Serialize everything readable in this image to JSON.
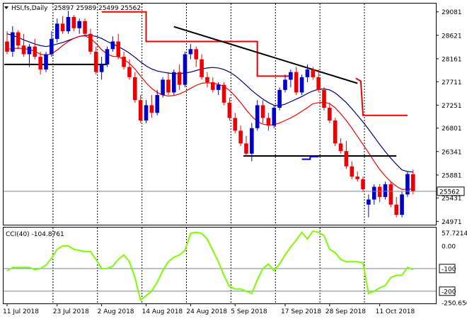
{
  "chart_data": [
    {
      "type": "candlestick",
      "header": {
        "symbol": "HSI,fs,Daily",
        "ohlc_text": "25897 25989 25499 25562"
      },
      "current_price": 25562,
      "current_price_label": "25562",
      "y_ticks": [
        "29081",
        "28621",
        "28161",
        "27711",
        "27251",
        "26801",
        "26341",
        "25881",
        "25431",
        "24971"
      ],
      "y_tick_values": [
        29081,
        28621,
        28161,
        27711,
        27251,
        26801,
        26341,
        25881,
        25431,
        24971
      ],
      "ylim": [
        24920,
        29230
      ],
      "x_labels": [
        "11 Jul 2018",
        "23 Jul 2018",
        "2 Aug 2018",
        "14 Aug 2018",
        "24 Aug 2018",
        "5 Sep 2018",
        "17 Sep 2018",
        "28 Sep 2018",
        "11 Oct 2018"
      ],
      "x_label_bars": [
        0,
        9,
        17,
        25,
        33,
        41,
        50,
        58,
        67
      ],
      "candles": [
        [
          28500,
          28700,
          28250,
          28300
        ],
        [
          28300,
          28800,
          28200,
          28680
        ],
        [
          28680,
          28720,
          28350,
          28420
        ],
        [
          28420,
          28650,
          28200,
          28250
        ],
        [
          28250,
          28450,
          28000,
          28400
        ],
        [
          28400,
          28550,
          28150,
          28200
        ],
        [
          28200,
          28300,
          27850,
          27950
        ],
        [
          27950,
          28300,
          27900,
          28250
        ],
        [
          28250,
          28700,
          28200,
          28550
        ],
        [
          28550,
          28950,
          28480,
          28850
        ],
        [
          28850,
          29000,
          28650,
          28700
        ],
        [
          28700,
          29100,
          28650,
          28980
        ],
        [
          28980,
          29020,
          28700,
          28760
        ],
        [
          28760,
          28950,
          28650,
          28900
        ],
        [
          28900,
          28950,
          28600,
          28650
        ],
        [
          28650,
          28750,
          28250,
          28300
        ],
        [
          28300,
          28400,
          27850,
          27900
        ],
        [
          27900,
          28200,
          27750,
          28050
        ],
        [
          28050,
          28400,
          28000,
          28350
        ],
        [
          28350,
          28600,
          28300,
          28500
        ],
        [
          28500,
          28650,
          28150,
          28200
        ],
        [
          28200,
          28300,
          27950,
          28000
        ],
        [
          28000,
          28150,
          27750,
          27800
        ],
        [
          27800,
          27900,
          27300,
          27350
        ],
        [
          27350,
          27450,
          26900,
          26950
        ],
        [
          26950,
          27350,
          26900,
          27250
        ],
        [
          27250,
          27450,
          27000,
          27100
        ],
        [
          27100,
          27550,
          27050,
          27450
        ],
        [
          27450,
          27800,
          27400,
          27750
        ],
        [
          27750,
          27900,
          27450,
          27500
        ],
        [
          27500,
          27950,
          27450,
          27900
        ],
        [
          27900,
          28050,
          27550,
          27650
        ],
        [
          27650,
          28300,
          27600,
          28250
        ],
        [
          28250,
          28450,
          28150,
          28350
        ],
        [
          28350,
          28400,
          28000,
          28150
        ],
        [
          28150,
          28250,
          27750,
          27800
        ],
        [
          27800,
          27900,
          27600,
          27700
        ],
        [
          27700,
          27800,
          27500,
          27550
        ],
        [
          27550,
          27700,
          27450,
          27650
        ],
        [
          27650,
          27700,
          27250,
          27300
        ],
        [
          27300,
          27400,
          26950,
          27000
        ],
        [
          27000,
          27100,
          26700,
          26750
        ],
        [
          26750,
          26850,
          26450,
          26500
        ],
        [
          26500,
          26650,
          26250,
          26300
        ],
        [
          26300,
          26900,
          26150,
          26800
        ],
        [
          26800,
          27350,
          26750,
          27250
        ],
        [
          27250,
          27350,
          26900,
          27000
        ],
        [
          27000,
          27100,
          26750,
          26850
        ],
        [
          26850,
          27250,
          26800,
          27200
        ],
        [
          27200,
          27600,
          27150,
          27550
        ],
        [
          27550,
          27850,
          27500,
          27750
        ],
        [
          27750,
          27950,
          27600,
          27900
        ],
        [
          27900,
          28000,
          27450,
          27500
        ],
        [
          27500,
          27850,
          27450,
          27800
        ],
        [
          27800,
          28050,
          27700,
          27950
        ],
        [
          27950,
          28000,
          27750,
          27800
        ],
        [
          27800,
          27950,
          27500,
          27550
        ],
        [
          27550,
          27600,
          27150,
          27200
        ],
        [
          27200,
          27300,
          26900,
          26950
        ],
        [
          26950,
          27000,
          26450,
          26500
        ],
        [
          26500,
          26600,
          26300,
          26350
        ],
        [
          26350,
          26550,
          26000,
          26050
        ],
        [
          26050,
          26150,
          25800,
          25850
        ],
        [
          25850,
          25950,
          25750,
          25800
        ],
        [
          25800,
          25850,
          25550,
          25600
        ],
        [
          25300,
          25500,
          25050,
          25400
        ],
        [
          25400,
          25700,
          25300,
          25650
        ],
        [
          25650,
          25700,
          25350,
          25450
        ],
        [
          25450,
          25750,
          25400,
          25700
        ],
        [
          25700,
          25750,
          25250,
          25300
        ],
        [
          25300,
          25450,
          25050,
          25100
        ],
        [
          25100,
          25550,
          25050,
          25500
        ],
        [
          25500,
          25950,
          25450,
          25900
        ],
        [
          25897,
          25989,
          25499,
          25562
        ]
      ],
      "ma_blue": [
        28650,
        28620,
        28580,
        28530,
        28490,
        28450,
        28420,
        28400,
        28420,
        28450,
        28480,
        28520,
        28560,
        28600,
        28620,
        28620,
        28600,
        28560,
        28500,
        28450,
        28400,
        28340,
        28270,
        28190,
        28100,
        28020,
        27960,
        27920,
        27900,
        27880,
        27870,
        27870,
        27880,
        27900,
        27930,
        27960,
        27980,
        27990,
        27980,
        27950,
        27900,
        27830,
        27740,
        27640,
        27540,
        27450,
        27370,
        27300,
        27250,
        27240,
        27270,
        27320,
        27370,
        27420,
        27480,
        27530,
        27560,
        27570,
        27550,
        27490,
        27400,
        27300,
        27180,
        27050,
        26920,
        26780,
        26630,
        26480,
        26340,
        26210,
        26090,
        25980,
        25950,
        25940
      ],
      "ma_red": [
        28350,
        28360,
        28370,
        28360,
        28340,
        28310,
        28250,
        28230,
        28260,
        28330,
        28420,
        28500,
        28560,
        28600,
        28610,
        28560,
        28460,
        28340,
        28250,
        28210,
        28200,
        28150,
        28070,
        27960,
        27820,
        27690,
        27580,
        27500,
        27450,
        27430,
        27440,
        27470,
        27520,
        27580,
        27640,
        27680,
        27690,
        27680,
        27660,
        27620,
        27540,
        27430,
        27300,
        27160,
        27030,
        26930,
        26880,
        26860,
        26870,
        26900,
        26950,
        27000,
        27060,
        27130,
        27200,
        27280,
        27300,
        27310,
        27280,
        27200,
        27080,
        26950,
        26800,
        26640,
        26480,
        26320,
        26150,
        25990,
        25860,
        25750,
        25660,
        25600,
        25600,
        25610
      ],
      "red_step": [
        {
          "x0": 17,
          "x1": 25,
          "y": 29081
        },
        {
          "x0": 25,
          "x1": 43,
          "y": 28500
        },
        {
          "x0": 45,
          "x1": 51,
          "y": 27820
        },
        {
          "x0": 63,
          "x1": 63,
          "y": 27720
        },
        {
          "x0": 64,
          "x1": 72,
          "y": 27050
        }
      ],
      "trendline": {
        "x0": 30,
        "y0": 28790,
        "x1": 63,
        "y1": 27680
      },
      "support_lines": [
        {
          "x0": 0,
          "x1": 18,
          "y": 28050
        },
        {
          "x0": 43,
          "x1": 70,
          "y": 26255
        }
      ],
      "blue_step": {
        "x0": 53,
        "x1": 56,
        "y": 26190
      },
      "vgrid_bars": [
        8,
        16,
        24,
        32,
        40,
        48,
        56,
        64
      ],
      "cci": {
        "label": "CCI(40) -104.8761",
        "y_ticks": [
          "57.7214",
          "0.00",
          "-100",
          "-200",
          "-250.650"
        ],
        "y_tick_values": [
          57.7214,
          0,
          -100,
          -200,
          -250.65
        ],
        "ylim": [
          -250.65,
          77.7214
        ],
        "levels": [
          -100,
          -200
        ],
        "values": [
          -110,
          -95,
          -95,
          -95,
          -95,
          -105,
          -100,
          -85,
          -55,
          -15,
          0,
          0,
          -15,
          -20,
          -25,
          -25,
          -60,
          -100,
          -100,
          -90,
          -60,
          -40,
          -70,
          -140,
          -240,
          -220,
          -200,
          -160,
          -110,
          -70,
          -50,
          -40,
          -20,
          55,
          60,
          55,
          30,
          -20,
          -70,
          -130,
          -180,
          -190,
          -190,
          -200,
          -210,
          -150,
          -100,
          -80,
          -110,
          -80,
          -40,
          -5,
          25,
          60,
          30,
          65,
          60,
          45,
          -15,
          -30,
          -60,
          -70,
          -70,
          -70,
          -75,
          -210,
          -200,
          -185,
          -175,
          -140,
          -130,
          -130,
          -95,
          -105
        ]
      }
    }
  ],
  "colors": {
    "bull": "#0000cc",
    "bear": "#ee0000",
    "ma_blue": "#000080",
    "ma_red": "#ee0000",
    "cci_line": "#7cfc00",
    "price_line": "#778899"
  }
}
